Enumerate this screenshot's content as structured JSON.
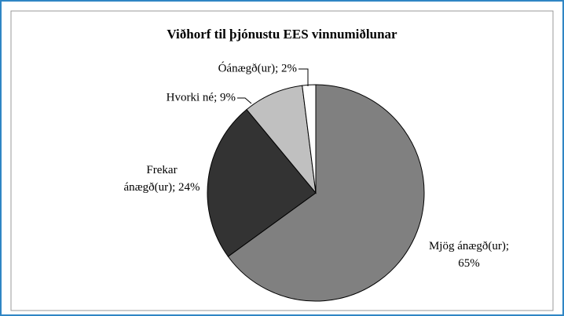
{
  "chart_data": {
    "type": "pie",
    "title": "Viðhorf til þjónustu EES vinnumiðlunar",
    "values": [
      65,
      24,
      9,
      2
    ],
    "value_labels": [
      "Mjög ánægð(ur); 65%",
      "Frekar ánægð(ur); 24%",
      "Hvorki né; 9%",
      "Óánægð(ur); 2%"
    ],
    "colors": [
      "#808080",
      "#333333",
      "#c0c0c0",
      "#ffffff"
    ]
  }
}
